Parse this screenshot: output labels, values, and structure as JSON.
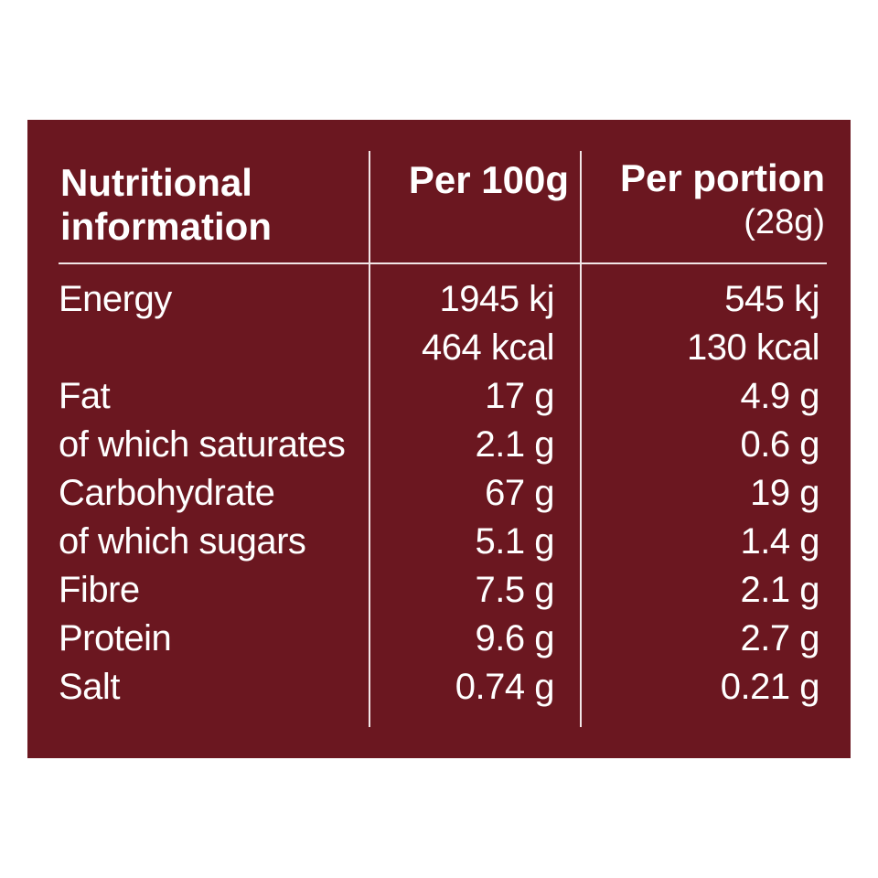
{
  "header": {
    "name_line1": "Nutritional",
    "name_line2": "information",
    "per_100g": "Per 100g",
    "per_portion": "Per portion",
    "portion_size": "(28g)"
  },
  "rows": [
    {
      "name": "Energy",
      "per_100g": "1945 kj",
      "per_100g_2": "464 kcal",
      "per_portion": "545 kj",
      "per_portion_2": "130 kcal"
    },
    {
      "name": "Fat",
      "per_100g": "17 g",
      "per_portion": "4.9 g"
    },
    {
      "name": "of which saturates",
      "per_100g": "2.1 g",
      "per_portion": "0.6 g"
    },
    {
      "name": "Carbohydrate",
      "per_100g": "67 g",
      "per_portion": "19 g"
    },
    {
      "name": "of which sugars",
      "per_100g": "5.1 g",
      "per_portion": "1.4 g"
    },
    {
      "name": "Fibre",
      "per_100g": "7.5 g",
      "per_portion": "2.1 g"
    },
    {
      "name": "Protein",
      "per_100g": "9.6 g",
      "per_portion": "2.7 g"
    },
    {
      "name": "Salt",
      "per_100g": "0.74 g",
      "per_portion": "0.21 g"
    }
  ],
  "colors": {
    "panel_background": "#6b1720",
    "text": "#ffffff",
    "rule": "#f2e6e7"
  }
}
